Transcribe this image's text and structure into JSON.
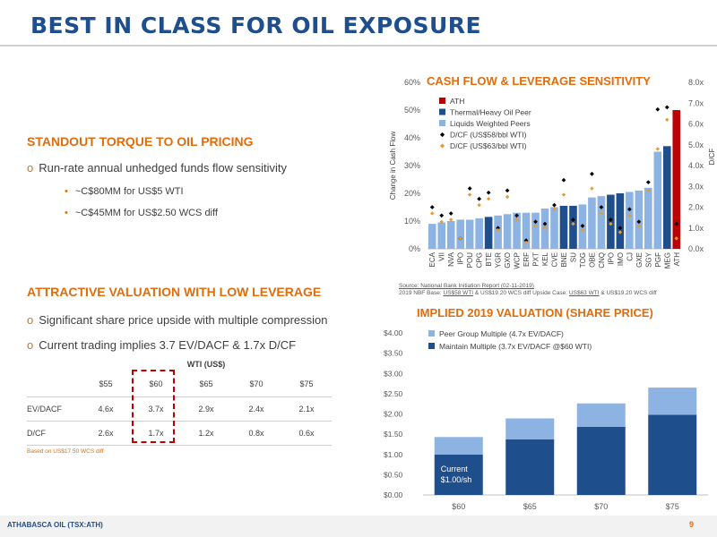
{
  "page": {
    "title": "BEST IN CLASS FOR OIL EXPOSURE",
    "page_number": "9"
  },
  "footer": {
    "company": "ATHABASCA OIL (TSX:ATH)"
  },
  "left": {
    "section1": {
      "heading": "STANDOUT TORQUE TO OIL PRICING",
      "bullet": "Run-rate annual unhedged funds flow sensitivity",
      "sub1": "~C$80MM for US$5 WTI",
      "sub2": "~C$45MM for US$2.50 WCS diff"
    },
    "section2": {
      "heading": "ATTRACTIVE VALUATION WITH LOW LEVERAGE",
      "bullet1": "Significant share price upside with multiple compression",
      "bullet2": "Current trading implies 3.7 EV/DACF & 1.7x D/CF"
    },
    "table": {
      "caption": "WTI (US$)",
      "columns": [
        "$55",
        "$60",
        "$65",
        "$70",
        "$75"
      ],
      "rows": [
        {
          "label": "EV/DACF",
          "values": [
            "4.6x",
            "3.7x",
            "2.9x",
            "2.4x",
            "2.1x"
          ]
        },
        {
          "label": "D/CF",
          "values": [
            "2.6x",
            "1.7x",
            "1.2x",
            "0.8x",
            "0.6x"
          ]
        }
      ],
      "footnote": "Based on US$17.50 WCS diff"
    }
  },
  "chart1_source": {
    "line1": "Source: National Bank Initiation Report (02-11-2019)",
    "line2_prefix": "2019 NBF Base: ",
    "line2_u1": "US$58 WTI",
    "line2_mid1": " & US$19.20 WCS diff     Upside Case: ",
    "line2_u2": "US$63 WTI",
    "line2_mid2": " & US$19.20 WCS diff"
  },
  "colors": {
    "ath": "#c00000",
    "thermal": "#1f4e8c",
    "liquids": "#8db3e2",
    "dcf_base": "#000000",
    "dcf_upside": "#e69b34",
    "orange_text": "#e36c0a",
    "title_blue": "#1f4e8c"
  },
  "chart_data": [
    {
      "type": "bar",
      "title": "CASH FLOW & LEVERAGE SENSITIVITY",
      "ylabel": "Change in Cash Flow",
      "y2label": "D/CF",
      "ylim": [
        0,
        60
      ],
      "y2lim": [
        0,
        8
      ],
      "yticks": [
        "0%",
        "10%",
        "20%",
        "30%",
        "40%",
        "50%",
        "60%"
      ],
      "y2ticks": [
        "0.0x",
        "1.0x",
        "2.0x",
        "3.0x",
        "4.0x",
        "5.0x",
        "6.0x",
        "7.0x",
        "8.0x"
      ],
      "legend": [
        "ATH",
        "Thermal/Heavy Oil Peer",
        "Liquids Weighted Peers",
        "D/CF (US$58/bbl WTI)",
        "D/CF (US$63/bbl WTI)"
      ],
      "categories": [
        "ECA",
        "VII",
        "NVA",
        "IPO",
        "POU",
        "CPG",
        "BTE",
        "YGR",
        "GXO",
        "WCP",
        "ERF",
        "PXT",
        "KEL",
        "CVE",
        "BNE",
        "SU",
        "TOG",
        "OBE",
        "CNQ",
        "IPO",
        "IMO",
        "CJ",
        "GXE",
        "SGY",
        "PGF",
        "MEG",
        "ATH"
      ],
      "group": [
        "L",
        "L",
        "L",
        "L",
        "L",
        "L",
        "T",
        "L",
        "L",
        "L",
        "L",
        "L",
        "L",
        "L",
        "T",
        "T",
        "L",
        "L",
        "L",
        "T",
        "T",
        "L",
        "L",
        "L",
        "L",
        "T",
        "A"
      ],
      "values": [
        9,
        9.5,
        10,
        10.5,
        10.5,
        11,
        11.5,
        12,
        12.5,
        13,
        13,
        13,
        14.5,
        15,
        15.5,
        15.5,
        16,
        18.5,
        19,
        19.5,
        20,
        20.5,
        21,
        22,
        35,
        37,
        50
      ],
      "dcf_58": [
        2.0,
        1.6,
        1.7,
        0.5,
        2.9,
        2.4,
        2.7,
        1.0,
        2.8,
        1.6,
        0.4,
        1.3,
        1.2,
        2.1,
        3.3,
        1.4,
        1.1,
        3.6,
        2.0,
        1.4,
        1.0,
        1.9,
        1.3,
        3.2,
        6.7,
        6.8,
        1.2
      ],
      "dcf_63": [
        1.7,
        1.3,
        1.4,
        0.5,
        2.6,
        2.1,
        2.4,
        0.9,
        2.5,
        1.4,
        0.3,
        1.1,
        1.0,
        1.9,
        2.6,
        1.2,
        0.9,
        2.9,
        1.7,
        1.2,
        0.8,
        1.6,
        1.1,
        2.8,
        4.8,
        6.2,
        0.5
      ]
    },
    {
      "type": "bar",
      "title": "IMPLIED 2019 VALUATION (SHARE PRICE)",
      "ylim": [
        0,
        4
      ],
      "yticks": [
        "$0.00",
        "$0.50",
        "$1.00",
        "$1.50",
        "$2.00",
        "$2.50",
        "$3.00",
        "$3.50",
        "$4.00"
      ],
      "categories": [
        "$60",
        "$65",
        "$70",
        "$75"
      ],
      "series": [
        {
          "name": "Maintain Multiple (3.7x EV/DACF @$60 WTI)",
          "values": [
            1.0,
            1.37,
            1.68,
            1.98
          ]
        },
        {
          "name": "Peer Group Multiple (4.7x EV/DACF)",
          "values": [
            0.43,
            0.52,
            0.58,
            0.67
          ]
        }
      ],
      "annotation": [
        "Current",
        "$1.00/sh"
      ]
    }
  ]
}
